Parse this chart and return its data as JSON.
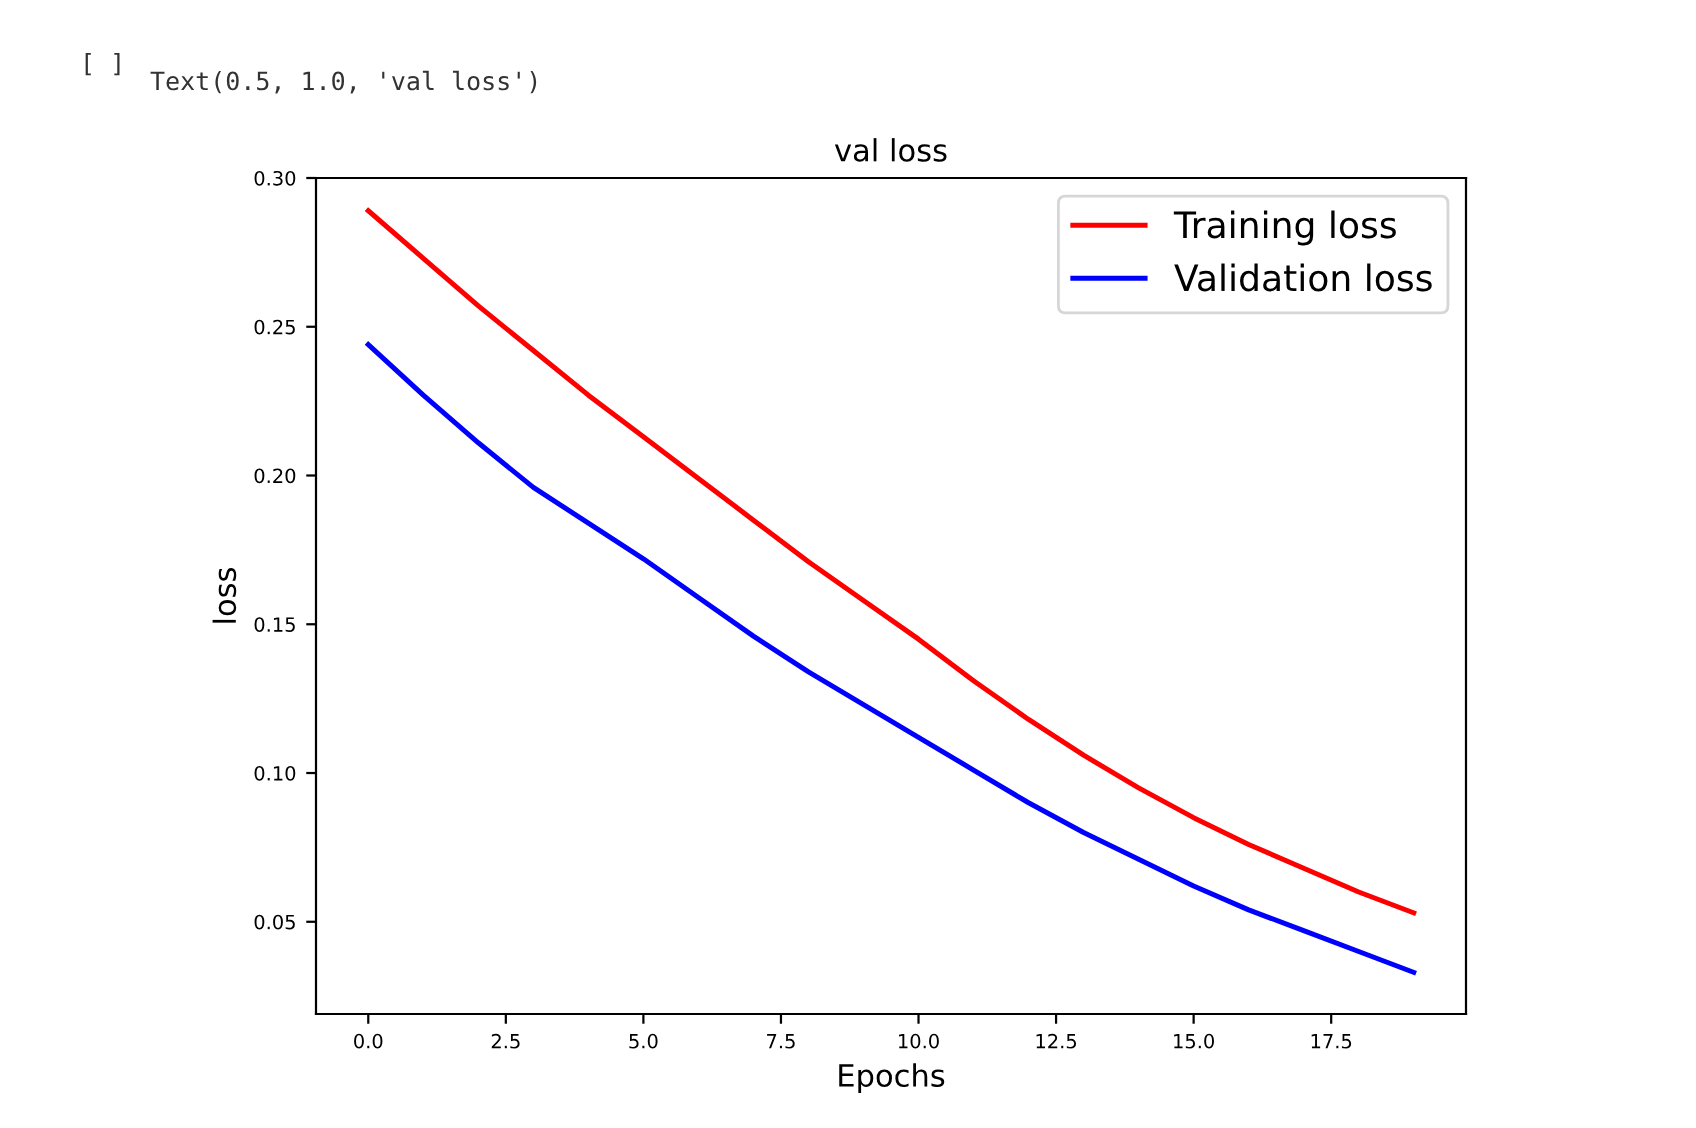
{
  "chart_data": {
    "type": "line",
    "title": "val loss",
    "xlabel": "Epochs",
    "ylabel": "loss",
    "annotations": [
      "[ ]",
      "Text(0.5, 1.0, 'val loss')"
    ],
    "x": [
      0,
      1,
      2,
      3,
      4,
      5,
      6,
      7,
      8,
      9,
      10,
      11,
      12,
      13,
      14,
      15,
      16,
      17,
      18,
      19
    ],
    "series": [
      {
        "name": "Training loss",
        "color": "#ff0000",
        "values": [
          0.289,
          0.273,
          0.257,
          0.242,
          0.227,
          0.213,
          0.199,
          0.185,
          0.171,
          0.158,
          0.145,
          0.131,
          0.118,
          0.106,
          0.095,
          0.085,
          0.076,
          0.068,
          0.06,
          0.053
        ]
      },
      {
        "name": "Validation loss",
        "color": "#0000ff",
        "values": [
          0.244,
          0.227,
          0.211,
          0.196,
          0.184,
          0.172,
          0.159,
          0.146,
          0.134,
          0.123,
          0.112,
          0.101,
          0.09,
          0.08,
          0.071,
          0.062,
          0.054,
          0.047,
          0.04,
          0.033
        ]
      }
    ],
    "xlim": [
      -0.95,
      19.95
    ],
    "ylim": [
      0.019,
      0.3
    ],
    "xticks": [
      {
        "value": 0,
        "label": "0.0"
      },
      2.5,
      {
        "value": 5,
        "label": "5.0"
      },
      7.5,
      {
        "value": 10,
        "label": "10.0"
      },
      12.5,
      {
        "value": 15,
        "label": "15.0"
      },
      17.5
    ],
    "yticks": [
      0.05,
      {
        "value": 0.1,
        "label": "0.10"
      },
      0.15,
      {
        "value": 0.2,
        "label": "0.20"
      },
      0.25,
      {
        "value": 0.3,
        "label": "0.30"
      }
    ],
    "legend": "top right",
    "grid": false
  }
}
